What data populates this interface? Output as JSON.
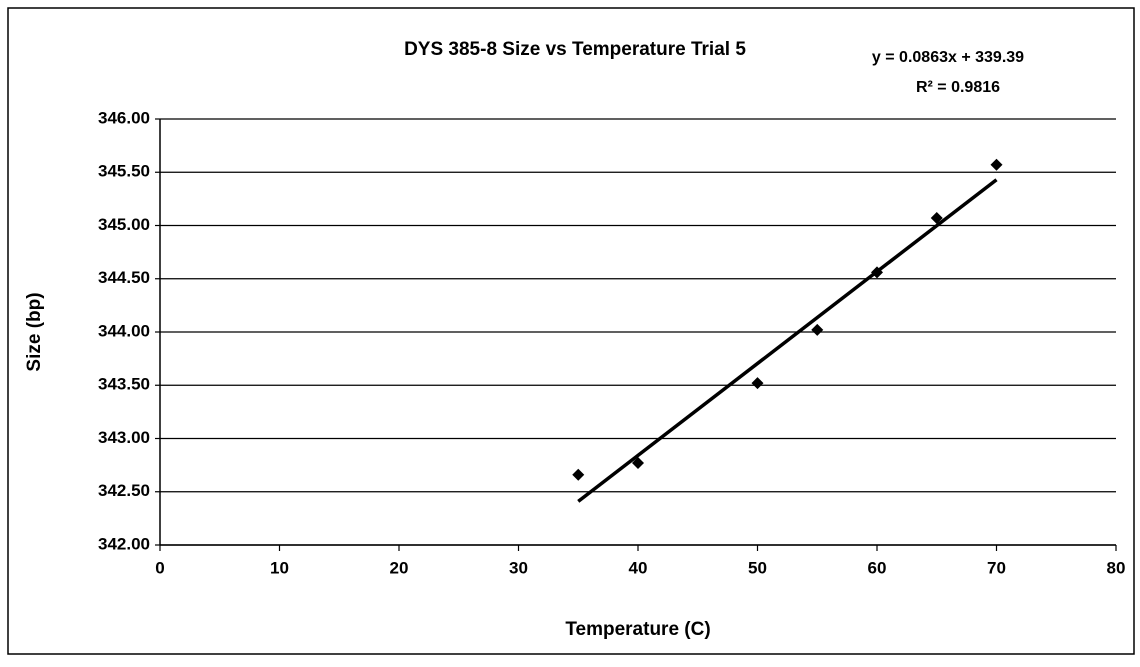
{
  "chart_data": {
    "type": "scatter",
    "title": "DYS 385-8 Size vs Temperature Trial 5",
    "x_label": "Temperature (C)",
    "y_label": "Size (bp)",
    "annotations": [
      "y = 0.0863x + 339.39",
      "R² = 0.9816"
    ],
    "series": [
      {
        "color": "#000000",
        "x": [
          35,
          40,
          50,
          55,
          60,
          65,
          70
        ],
        "values": [
          342.66,
          342.77,
          343.52,
          344.02,
          344.56,
          345.07,
          345.57
        ]
      }
    ],
    "trendline": {
      "color": "#000000",
      "x": [
        35,
        70
      ],
      "values": [
        342.41,
        345.43
      ]
    },
    "xlim": [
      0,
      80
    ],
    "xticks": [
      0,
      10,
      20,
      30,
      40,
      50,
      60,
      70,
      80
    ],
    "ylim": [
      342,
      346
    ],
    "yticks": [
      {
        "value": 342,
        "label": "342.00"
      },
      {
        "value": 342.5,
        "label": "342.50"
      },
      {
        "value": 343,
        "label": "343.00"
      },
      {
        "value": 343.5,
        "label": "343.50"
      },
      {
        "value": 344,
        "label": "344.00"
      },
      {
        "value": 344.5,
        "label": "344.50"
      },
      {
        "value": 345,
        "label": "345.00"
      },
      {
        "value": 345.5,
        "label": "345.50"
      },
      {
        "value": 346,
        "label": "346.00"
      }
    ],
    "grid": true
  }
}
